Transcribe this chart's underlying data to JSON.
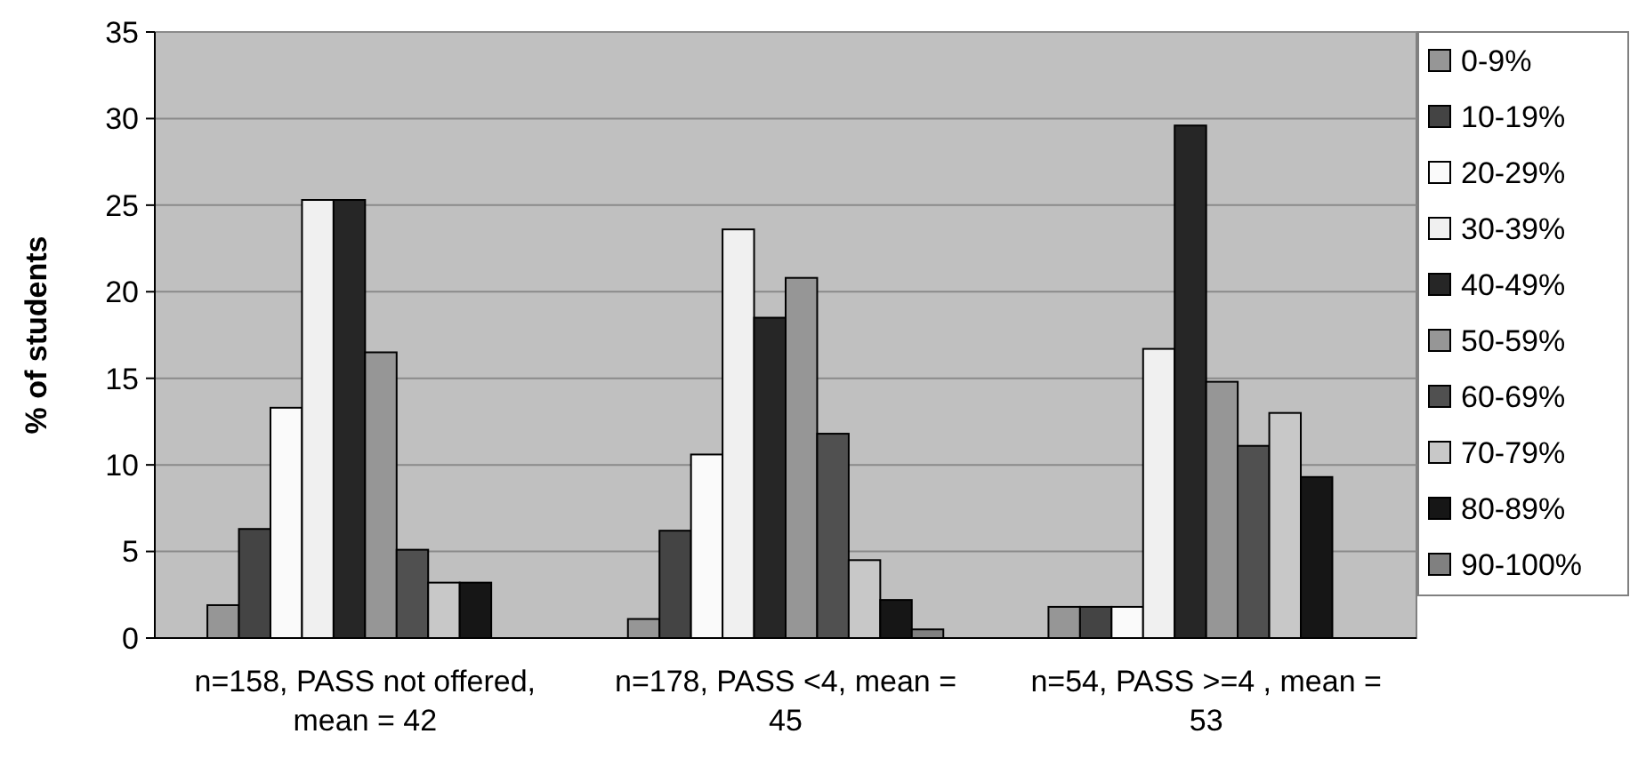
{
  "chart_data": {
    "type": "bar",
    "ylabel": "% of students",
    "categories": [
      "n=158, PASS not offered, mean = 42",
      "n=178, PASS <4, mean = 45",
      "n=54, PASS >=4 , mean = 53"
    ],
    "series": [
      {
        "name": "0-9%",
        "color": "#969696",
        "values": [
          1.9,
          1.1,
          1.8
        ]
      },
      {
        "name": "10-19%",
        "color": "#444444",
        "values": [
          6.3,
          6.2,
          1.8
        ]
      },
      {
        "name": "20-29%",
        "color": "#fafafa",
        "values": [
          13.3,
          10.6,
          1.8
        ]
      },
      {
        "name": "30-39%",
        "color": "#f0f0f0",
        "values": [
          25.3,
          23.6,
          16.7
        ]
      },
      {
        "name": "40-49%",
        "color": "#262626",
        "values": [
          25.3,
          18.5,
          29.6
        ]
      },
      {
        "name": "50-59%",
        "color": "#969696",
        "values": [
          16.5,
          20.8,
          14.8
        ]
      },
      {
        "name": "60-69%",
        "color": "#505050",
        "values": [
          5.1,
          11.8,
          11.1
        ]
      },
      {
        "name": "70-79%",
        "color": "#c8c8c8",
        "values": [
          3.2,
          4.5,
          13.0
        ]
      },
      {
        "name": "80-89%",
        "color": "#161616",
        "values": [
          3.2,
          2.2,
          9.3
        ]
      },
      {
        "name": "90-100%",
        "color": "#808080",
        "values": [
          0,
          0.5,
          0
        ]
      }
    ],
    "ylim": [
      0,
      35
    ],
    "yticks": [
      0,
      5,
      10,
      15,
      20,
      25,
      30,
      35
    ],
    "grid": "y",
    "legend": "right"
  }
}
